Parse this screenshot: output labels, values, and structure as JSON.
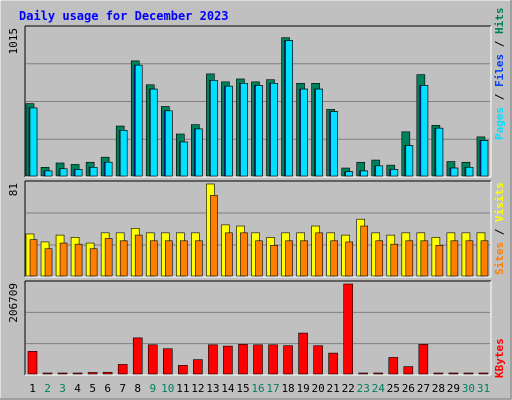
{
  "title": "Daily usage for December 2023",
  "colors": {
    "background": "#C0C0C0",
    "plot_bg": "#C0C0C0",
    "title": "#0000FF",
    "hits": "#00805C",
    "files": "#0040FF",
    "pages": "#00E0FF",
    "visits": "#FFFF00",
    "sites": "#FF8000",
    "kbytes": "#FF0000",
    "weekday_label": "#000000",
    "weekend_label": "#00805C"
  },
  "chart_data": [
    {
      "type": "bar",
      "title": "Daily usage for December 2023",
      "panel": "hits-files-pages",
      "ymax_label": "1015",
      "ylim": [
        0,
        1015
      ],
      "legend": [
        "Pages",
        "Files",
        "Hits"
      ],
      "legend_separator": "/",
      "categories": [
        "1",
        "2",
        "3",
        "4",
        "5",
        "6",
        "7",
        "8",
        "9",
        "10",
        "11",
        "12",
        "13",
        "14",
        "15",
        "16",
        "17",
        "18",
        "19",
        "20",
        "21",
        "22",
        "23",
        "24",
        "25",
        "26",
        "27",
        "28",
        "29",
        "30",
        "31"
      ],
      "series": [
        {
          "name": "Hits",
          "values": [
            500,
            60,
            90,
            80,
            95,
            130,
            345,
            795,
            630,
            480,
            290,
            355,
            705,
            650,
            670,
            650,
            665,
            955,
            640,
            640,
            460,
            55,
            95,
            110,
            75,
            305,
            700,
            350,
            100,
            95,
            270
          ]
        },
        {
          "name": "Files",
          "values": [
            470,
            35,
            50,
            45,
            60,
            95,
            315,
            765,
            600,
            450,
            235,
            325,
            660,
            620,
            640,
            625,
            640,
            935,
            600,
            600,
            445,
            30,
            35,
            70,
            45,
            210,
            625,
            330,
            55,
            60,
            245
          ]
        },
        {
          "name": "Pages",
          "values": [
            470,
            35,
            50,
            45,
            60,
            95,
            315,
            765,
            600,
            450,
            235,
            325,
            660,
            620,
            640,
            625,
            640,
            935,
            600,
            600,
            445,
            30,
            35,
            70,
            45,
            210,
            625,
            330,
            55,
            60,
            245
          ]
        }
      ]
    },
    {
      "type": "bar",
      "panel": "visits-sites",
      "ymax_label": "81",
      "ylim": [
        0,
        81
      ],
      "legend": [
        "Sites",
        "Visits"
      ],
      "legend_separator": "/",
      "categories": [
        "1",
        "2",
        "3",
        "4",
        "5",
        "6",
        "7",
        "8",
        "9",
        "10",
        "11",
        "12",
        "13",
        "14",
        "15",
        "16",
        "17",
        "18",
        "19",
        "20",
        "21",
        "22",
        "23",
        "24",
        "25",
        "26",
        "27",
        "28",
        "29",
        "30",
        "31"
      ],
      "series": [
        {
          "name": "Visits",
          "values": [
            37,
            30,
            36,
            34,
            29,
            38,
            38,
            42,
            38,
            38,
            38,
            38,
            81,
            45,
            44,
            38,
            34,
            38,
            38,
            44,
            38,
            36,
            50,
            38,
            36,
            38,
            38,
            34,
            38,
            38,
            38
          ]
        },
        {
          "name": "Sites",
          "values": [
            32,
            24,
            29,
            28,
            24,
            33,
            31,
            36,
            31,
            31,
            31,
            31,
            71,
            38,
            38,
            31,
            27,
            31,
            31,
            38,
            31,
            30,
            44,
            31,
            28,
            31,
            31,
            27,
            31,
            31,
            31
          ]
        }
      ]
    },
    {
      "type": "bar",
      "panel": "kbytes",
      "ymax_label": "206709",
      "ylim": [
        0,
        206709
      ],
      "legend": [
        "KBytes"
      ],
      "categories": [
        "1",
        "2",
        "3",
        "4",
        "5",
        "6",
        "7",
        "8",
        "9",
        "10",
        "11",
        "12",
        "13",
        "14",
        "15",
        "16",
        "17",
        "18",
        "19",
        "20",
        "21",
        "22",
        "23",
        "24",
        "25",
        "26",
        "27",
        "28",
        "29",
        "30",
        "31"
      ],
      "series": [
        {
          "name": "KBytes",
          "values": [
            52000,
            1500,
            1800,
            1800,
            3500,
            4000,
            22000,
            83000,
            67000,
            58000,
            20000,
            33000,
            67000,
            64000,
            68000,
            67000,
            67000,
            65000,
            94000,
            65000,
            48000,
            206709,
            1500,
            1500,
            38000,
            17000,
            68000,
            1500,
            1500,
            1500,
            1500
          ]
        }
      ]
    }
  ],
  "x_labels": {
    "values": [
      "1",
      "2",
      "3",
      "4",
      "5",
      "6",
      "7",
      "8",
      "9",
      "10",
      "11",
      "12",
      "13",
      "14",
      "15",
      "16",
      "17",
      "18",
      "19",
      "20",
      "21",
      "22",
      "23",
      "24",
      "25",
      "26",
      "27",
      "28",
      "29",
      "30",
      "31"
    ],
    "weekend": [
      false,
      true,
      true,
      false,
      false,
      false,
      false,
      false,
      true,
      true,
      false,
      false,
      false,
      false,
      false,
      true,
      true,
      false,
      false,
      false,
      false,
      false,
      true,
      true,
      false,
      false,
      false,
      false,
      false,
      true,
      true
    ]
  }
}
